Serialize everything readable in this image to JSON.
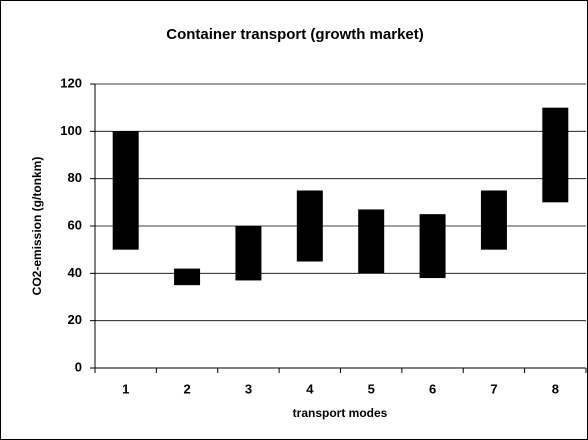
{
  "chart_data": {
    "type": "floating-bar",
    "title": "Container transport (growth market)",
    "x_label": "transport modes",
    "y_label": "CO2-emission (g/tonkm)",
    "categories": [
      "1",
      "2",
      "3",
      "4",
      "5",
      "6",
      "7",
      "8"
    ],
    "low": [
      50,
      35,
      37,
      45,
      40,
      38,
      50,
      70
    ],
    "high": [
      100,
      42,
      60,
      75,
      67,
      65,
      75,
      110
    ],
    "color": "#000000",
    "ylim": [
      0,
      120
    ],
    "yticks": [
      0,
      20,
      40,
      60,
      80,
      100,
      120
    ],
    "grid": true
  }
}
